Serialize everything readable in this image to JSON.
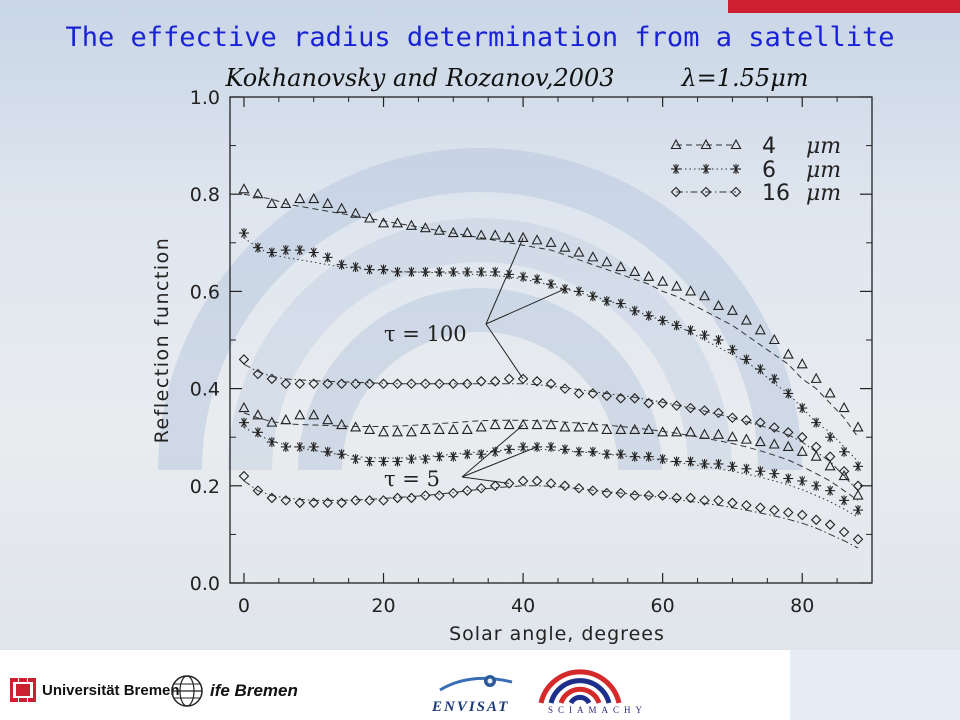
{
  "slide": {
    "title": "The effective radius determination from a satellite"
  },
  "chart_data": {
    "type": "scatter",
    "subtitle": "Kokhanovsky and Rozanov,2003",
    "wavelength_label": "λ=1.55μm",
    "xlabel": "Solar angle, degrees",
    "ylabel": "Reflection function",
    "xlim": [
      -2,
      90
    ],
    "ylim": [
      0,
      1.0
    ],
    "xticks": [
      0,
      20,
      40,
      60,
      80
    ],
    "yticks": [
      "0.0",
      "0.2",
      "0.4",
      "0.6",
      "0.8",
      "1.0"
    ],
    "grid": false,
    "legend_position": "top-right",
    "legend": [
      {
        "marker": "triangle",
        "line": "dashed",
        "size": "4",
        "unit": "μm"
      },
      {
        "marker": "star",
        "line": "dotted",
        "size": "6",
        "unit": "μm"
      },
      {
        "marker": "diamond",
        "line": "dash-dot",
        "size": "16",
        "unit": "μm"
      }
    ],
    "annotations": [
      "τ = 100",
      "τ = 5"
    ],
    "series": [
      {
        "tau": 100,
        "marker": "triangle",
        "line": "dashed",
        "x": [
          0,
          2,
          4,
          6,
          8,
          10,
          12,
          14,
          16,
          18,
          20,
          22,
          24,
          26,
          28,
          30,
          32,
          34,
          36,
          38,
          40,
          42,
          44,
          46,
          48,
          50,
          52,
          54,
          56,
          58,
          60,
          62,
          64,
          66,
          68,
          70,
          72,
          74,
          76,
          78,
          80,
          82,
          84,
          86,
          88
        ],
        "values": [
          0.81,
          0.8,
          0.78,
          0.78,
          0.79,
          0.79,
          0.78,
          0.77,
          0.76,
          0.75,
          0.74,
          0.74,
          0.735,
          0.73,
          0.725,
          0.72,
          0.72,
          0.715,
          0.715,
          0.71,
          0.71,
          0.705,
          0.7,
          0.69,
          0.68,
          0.67,
          0.66,
          0.65,
          0.64,
          0.63,
          0.62,
          0.61,
          0.6,
          0.59,
          0.57,
          0.56,
          0.54,
          0.52,
          0.5,
          0.47,
          0.45,
          0.42,
          0.39,
          0.36,
          0.32
        ],
        "fit": [
          0.8,
          0.795,
          0.79,
          0.78,
          0.775,
          0.77,
          0.765,
          0.76,
          0.755,
          0.75,
          0.745,
          0.74,
          0.735,
          0.73,
          0.725,
          0.72,
          0.715,
          0.71,
          0.705,
          0.7,
          0.695,
          0.69,
          0.685,
          0.675,
          0.665,
          0.655,
          0.645,
          0.635,
          0.625,
          0.615,
          0.6,
          0.59,
          0.575,
          0.56,
          0.545,
          0.53,
          0.51,
          0.49,
          0.47,
          0.45,
          0.42,
          0.4,
          0.37,
          0.34,
          0.3
        ]
      },
      {
        "tau": 100,
        "marker": "star",
        "line": "dotted",
        "x": [
          0,
          2,
          4,
          6,
          8,
          10,
          12,
          14,
          16,
          18,
          20,
          22,
          24,
          26,
          28,
          30,
          32,
          34,
          36,
          38,
          40,
          42,
          44,
          46,
          48,
          50,
          52,
          54,
          56,
          58,
          60,
          62,
          64,
          66,
          68,
          70,
          72,
          74,
          76,
          78,
          80,
          82,
          84,
          86,
          88
        ],
        "values": [
          0.72,
          0.69,
          0.68,
          0.685,
          0.685,
          0.68,
          0.67,
          0.655,
          0.65,
          0.645,
          0.645,
          0.64,
          0.64,
          0.64,
          0.64,
          0.64,
          0.64,
          0.64,
          0.64,
          0.635,
          0.63,
          0.625,
          0.615,
          0.605,
          0.6,
          0.59,
          0.58,
          0.575,
          0.56,
          0.55,
          0.54,
          0.53,
          0.52,
          0.51,
          0.5,
          0.48,
          0.46,
          0.44,
          0.42,
          0.39,
          0.36,
          0.33,
          0.3,
          0.27,
          0.24
        ],
        "fit": [
          0.71,
          0.69,
          0.675,
          0.67,
          0.665,
          0.66,
          0.655,
          0.65,
          0.648,
          0.645,
          0.643,
          0.641,
          0.64,
          0.639,
          0.638,
          0.637,
          0.636,
          0.634,
          0.632,
          0.63,
          0.625,
          0.62,
          0.612,
          0.605,
          0.598,
          0.59,
          0.582,
          0.572,
          0.56,
          0.55,
          0.54,
          0.53,
          0.515,
          0.5,
          0.485,
          0.47,
          0.455,
          0.435,
          0.41,
          0.39,
          0.36,
          0.33,
          0.31,
          0.28,
          0.25
        ]
      },
      {
        "tau": 100,
        "marker": "diamond",
        "line": "dash-dot",
        "x": [
          0,
          2,
          4,
          6,
          8,
          10,
          12,
          14,
          16,
          18,
          20,
          22,
          24,
          26,
          28,
          30,
          32,
          34,
          36,
          38,
          40,
          42,
          44,
          46,
          48,
          50,
          52,
          54,
          56,
          58,
          60,
          62,
          64,
          66,
          68,
          70,
          72,
          74,
          76,
          78,
          80,
          82,
          84,
          86,
          88
        ],
        "values": [
          0.46,
          0.43,
          0.42,
          0.41,
          0.41,
          0.41,
          0.41,
          0.41,
          0.41,
          0.41,
          0.41,
          0.41,
          0.41,
          0.41,
          0.41,
          0.41,
          0.41,
          0.415,
          0.415,
          0.42,
          0.42,
          0.415,
          0.41,
          0.4,
          0.39,
          0.39,
          0.385,
          0.38,
          0.38,
          0.37,
          0.37,
          0.365,
          0.36,
          0.355,
          0.35,
          0.34,
          0.335,
          0.33,
          0.32,
          0.31,
          0.3,
          0.28,
          0.26,
          0.23,
          0.2
        ],
        "fit": [
          0.45,
          0.435,
          0.425,
          0.42,
          0.418,
          0.416,
          0.415,
          0.414,
          0.413,
          0.412,
          0.411,
          0.41,
          0.41,
          0.41,
          0.41,
          0.41,
          0.41,
          0.41,
          0.41,
          0.41,
          0.41,
          0.408,
          0.405,
          0.402,
          0.398,
          0.394,
          0.39,
          0.386,
          0.382,
          0.377,
          0.372,
          0.366,
          0.36,
          0.354,
          0.347,
          0.34,
          0.332,
          0.324,
          0.315,
          0.305,
          0.29,
          0.27,
          0.25,
          0.22,
          0.19
        ]
      },
      {
        "tau": 5,
        "marker": "triangle",
        "line": "dashed",
        "x": [
          0,
          2,
          4,
          6,
          8,
          10,
          12,
          14,
          16,
          18,
          20,
          22,
          24,
          26,
          28,
          30,
          32,
          34,
          36,
          38,
          40,
          42,
          44,
          46,
          48,
          50,
          52,
          54,
          56,
          58,
          60,
          62,
          64,
          66,
          68,
          70,
          72,
          74,
          76,
          78,
          80,
          82,
          84,
          86,
          88
        ],
        "values": [
          0.36,
          0.345,
          0.33,
          0.335,
          0.345,
          0.345,
          0.335,
          0.325,
          0.32,
          0.315,
          0.31,
          0.31,
          0.31,
          0.315,
          0.315,
          0.315,
          0.315,
          0.32,
          0.325,
          0.325,
          0.325,
          0.325,
          0.325,
          0.32,
          0.32,
          0.32,
          0.315,
          0.315,
          0.315,
          0.315,
          0.31,
          0.31,
          0.31,
          0.305,
          0.305,
          0.3,
          0.295,
          0.29,
          0.285,
          0.28,
          0.27,
          0.26,
          0.24,
          0.22,
          0.18
        ],
        "fit": [
          0.35,
          0.34,
          0.332,
          0.328,
          0.326,
          0.325,
          0.324,
          0.323,
          0.322,
          0.322,
          0.322,
          0.323,
          0.324,
          0.326,
          0.328,
          0.33,
          0.332,
          0.334,
          0.335,
          0.335,
          0.335,
          0.334,
          0.333,
          0.331,
          0.329,
          0.327,
          0.325,
          0.322,
          0.319,
          0.316,
          0.312,
          0.308,
          0.303,
          0.298,
          0.293,
          0.287,
          0.28,
          0.272,
          0.263,
          0.253,
          0.24,
          0.225,
          0.21,
          0.19,
          0.17
        ]
      },
      {
        "tau": 5,
        "marker": "star",
        "line": "dotted",
        "x": [
          0,
          2,
          4,
          6,
          8,
          10,
          12,
          14,
          16,
          18,
          20,
          22,
          24,
          26,
          28,
          30,
          32,
          34,
          36,
          38,
          40,
          42,
          44,
          46,
          48,
          50,
          52,
          54,
          56,
          58,
          60,
          62,
          64,
          66,
          68,
          70,
          72,
          74,
          76,
          78,
          80,
          82,
          84,
          86,
          88
        ],
        "values": [
          0.33,
          0.31,
          0.29,
          0.28,
          0.28,
          0.28,
          0.27,
          0.265,
          0.255,
          0.25,
          0.25,
          0.25,
          0.255,
          0.255,
          0.26,
          0.26,
          0.265,
          0.265,
          0.27,
          0.275,
          0.28,
          0.28,
          0.28,
          0.275,
          0.27,
          0.27,
          0.265,
          0.265,
          0.26,
          0.26,
          0.255,
          0.25,
          0.25,
          0.245,
          0.245,
          0.24,
          0.235,
          0.23,
          0.225,
          0.215,
          0.21,
          0.2,
          0.19,
          0.17,
          0.15
        ],
        "fit": [
          0.32,
          0.305,
          0.292,
          0.284,
          0.278,
          0.273,
          0.268,
          0.264,
          0.26,
          0.258,
          0.257,
          0.257,
          0.258,
          0.26,
          0.262,
          0.265,
          0.268,
          0.27,
          0.272,
          0.274,
          0.275,
          0.275,
          0.274,
          0.272,
          0.27,
          0.268,
          0.265,
          0.262,
          0.259,
          0.256,
          0.252,
          0.248,
          0.244,
          0.24,
          0.235,
          0.23,
          0.224,
          0.218,
          0.21,
          0.202,
          0.192,
          0.18,
          0.167,
          0.152,
          0.135
        ]
      },
      {
        "tau": 5,
        "marker": "diamond",
        "line": "dash-dot",
        "x": [
          0,
          2,
          4,
          6,
          8,
          10,
          12,
          14,
          16,
          18,
          20,
          22,
          24,
          26,
          28,
          30,
          32,
          34,
          36,
          38,
          40,
          42,
          44,
          46,
          48,
          50,
          52,
          54,
          56,
          58,
          60,
          62,
          64,
          66,
          68,
          70,
          72,
          74,
          76,
          78,
          80,
          82,
          84,
          86,
          88
        ],
        "values": [
          0.22,
          0.19,
          0.175,
          0.17,
          0.165,
          0.165,
          0.165,
          0.165,
          0.17,
          0.17,
          0.17,
          0.175,
          0.175,
          0.18,
          0.18,
          0.185,
          0.19,
          0.195,
          0.2,
          0.205,
          0.21,
          0.21,
          0.205,
          0.2,
          0.195,
          0.19,
          0.185,
          0.185,
          0.18,
          0.18,
          0.18,
          0.175,
          0.175,
          0.17,
          0.17,
          0.165,
          0.16,
          0.155,
          0.15,
          0.145,
          0.14,
          0.13,
          0.12,
          0.105,
          0.09
        ],
        "fit": [
          0.21,
          0.19,
          0.18,
          0.175,
          0.172,
          0.17,
          0.17,
          0.17,
          0.171,
          0.172,
          0.174,
          0.176,
          0.178,
          0.18,
          0.183,
          0.186,
          0.19,
          0.193,
          0.196,
          0.198,
          0.2,
          0.2,
          0.199,
          0.197,
          0.194,
          0.191,
          0.188,
          0.185,
          0.182,
          0.179,
          0.176,
          0.172,
          0.168,
          0.164,
          0.16,
          0.155,
          0.15,
          0.144,
          0.138,
          0.131,
          0.123,
          0.113,
          0.1,
          0.087,
          0.072
        ]
      }
    ]
  },
  "footer": {
    "university": "Universität Bremen",
    "institute": "ife Bremen",
    "mission": "ENVISAT",
    "instrument": "SCIAMACHY"
  }
}
